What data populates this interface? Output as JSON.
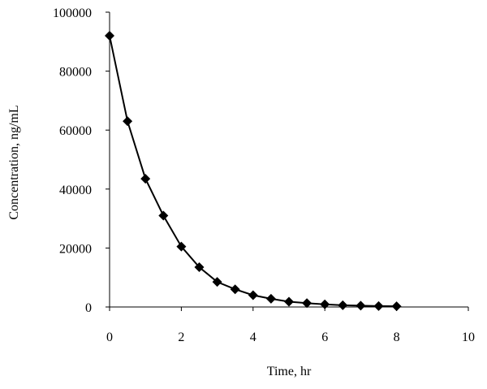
{
  "chart_data": {
    "type": "line",
    "xlabel": "Time, hr",
    "ylabel": "Concentration, ng/mL",
    "x": [
      0,
      0.5,
      1,
      1.5,
      2,
      2.5,
      3,
      3.5,
      4,
      4.5,
      5,
      5.5,
      6,
      6.5,
      7,
      7.5,
      8
    ],
    "series": [
      {
        "color": "#000000",
        "values": [
          92000,
          63000,
          43500,
          31000,
          20500,
          13500,
          8500,
          6000,
          4000,
          2800,
          1800,
          1300,
          900,
          600,
          450,
          300,
          250
        ]
      }
    ],
    "xlim": [
      0,
      10
    ],
    "xticks": [
      0,
      2,
      4,
      6,
      8,
      10
    ],
    "ylim": [
      0,
      100000
    ],
    "yticks": [
      0,
      20000,
      40000,
      60000,
      80000,
      100000
    ],
    "grid": false
  }
}
